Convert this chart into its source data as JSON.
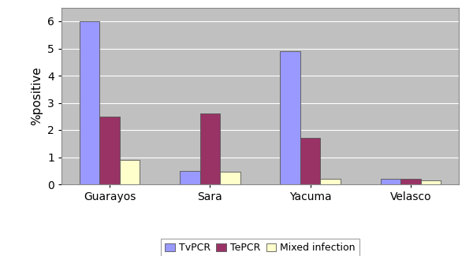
{
  "categories": [
    "Guarayos",
    "Sara",
    "Yacuma",
    "Velasco"
  ],
  "series": {
    "TvPCR": [
      6.0,
      0.5,
      4.9,
      0.2
    ],
    "TePCR": [
      2.5,
      2.6,
      1.7,
      0.2
    ],
    "Mixed infection": [
      0.9,
      0.45,
      0.2,
      0.15
    ]
  },
  "colors": {
    "TvPCR": "#9999FF",
    "TePCR": "#993366",
    "Mixed infection": "#FFFFCC"
  },
  "ylabel": "%positive",
  "ylim": [
    0,
    6.5
  ],
  "yticks": [
    0,
    1,
    2,
    3,
    4,
    5,
    6
  ],
  "legend_labels": [
    "TvPCR",
    "TePCR",
    "Mixed infection"
  ],
  "bar_width": 0.2,
  "background_color": "#FFFFFF",
  "plot_bg_color": "#C0C0C0",
  "grid_color": "#FFFFFF"
}
